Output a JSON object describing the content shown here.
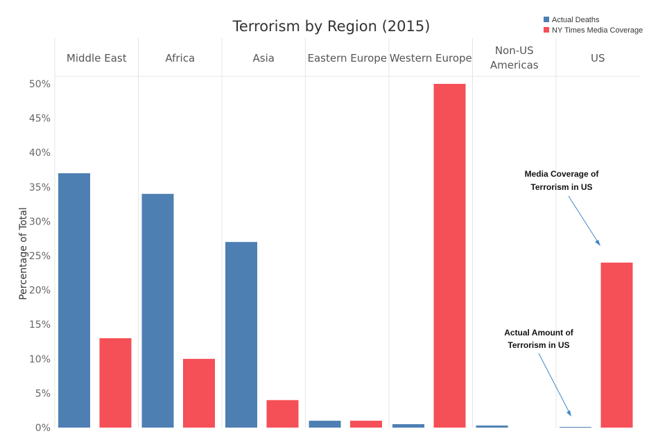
{
  "chart_data": {
    "type": "bar",
    "title": "Terrorism by Region (2015)",
    "ylabel": "Percentage of Total",
    "xlabel": "",
    "ylim": [
      0,
      50
    ],
    "yticks": [
      "0%",
      "5%",
      "10%",
      "15%",
      "20%",
      "25%",
      "30%",
      "35%",
      "40%",
      "45%",
      "50%"
    ],
    "ytick_values": [
      0,
      5,
      10,
      15,
      20,
      25,
      30,
      35,
      40,
      45,
      50
    ],
    "categories": [
      "Middle East",
      "Africa",
      "Asia",
      "Eastern Europe",
      "Western Europe",
      "Non-US Americas",
      "US"
    ],
    "category_lines": [
      [
        "Middle East"
      ],
      [
        "Africa"
      ],
      [
        "Asia"
      ],
      [
        "Eastern Europe"
      ],
      [
        "Western Europe"
      ],
      [
        "Non-US",
        "Americas"
      ],
      [
        "US"
      ]
    ],
    "series": [
      {
        "name": "Actual Deaths",
        "color": "#4e7fb3",
        "values": [
          37.0,
          34.0,
          27.0,
          1.0,
          0.5,
          0.3,
          0.1
        ]
      },
      {
        "name": "NY Times Media Coverage",
        "color": "#f54f57",
        "values": [
          13.0,
          10.0,
          4.0,
          1.0,
          50.0,
          0,
          24.0
        ]
      }
    ],
    "legend_position": "top-right",
    "annotations": [
      {
        "lines": [
          "Media Coverage of",
          "Terrorism in US"
        ],
        "target": "US - NY Times Media Coverage"
      },
      {
        "lines": [
          "Actual Amount of",
          "Terrorism in US"
        ],
        "target": "US - Actual Deaths"
      }
    ]
  }
}
